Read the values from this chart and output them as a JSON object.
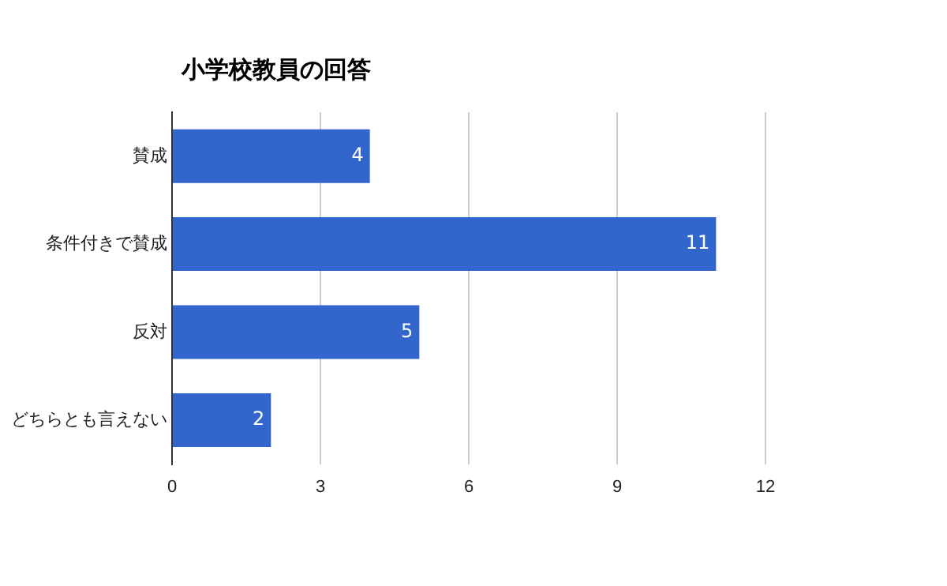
{
  "chart_data": {
    "type": "bar",
    "orientation": "horizontal",
    "title": "小学校教員の回答",
    "categories": [
      "賛成",
      "条件付きで賛成",
      "反対",
      "どちらとも言えない"
    ],
    "values": [
      4,
      11,
      5,
      2
    ],
    "color": "#3366cc",
    "xlim": [
      0,
      12
    ],
    "xticks": [
      0,
      3,
      6,
      9,
      12
    ],
    "grid": "x",
    "data_labels": true
  }
}
